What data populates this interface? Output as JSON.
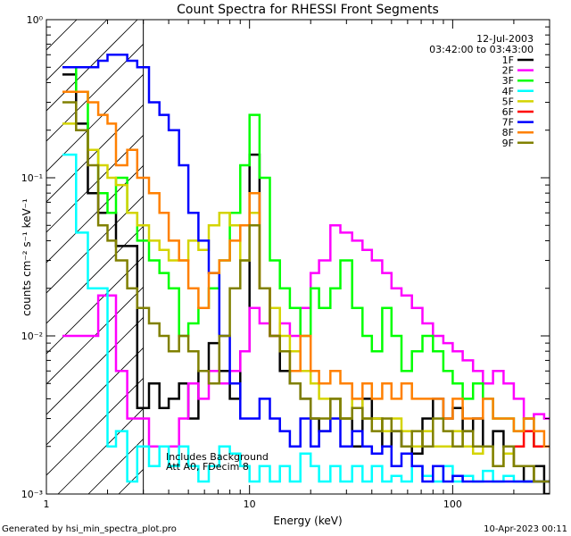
{
  "chart_data": {
    "type": "line",
    "title": "Count Spectra for RHESSI Front Segments",
    "xlabel": "Energy (keV)",
    "ylabel": "counts cm⁻² s⁻¹ keV⁻¹",
    "xscale": "log",
    "yscale": "log",
    "xlim": [
      1,
      300
    ],
    "ylim": [
      0.001,
      1
    ],
    "x_ticks": [
      {
        "value": 1,
        "label": "1"
      },
      {
        "value": 10,
        "label": "10"
      },
      {
        "value": 100,
        "label": "100"
      }
    ],
    "y_ticks": [
      {
        "value": 0.001,
        "label": "10⁻³"
      },
      {
        "value": 0.01,
        "label": "10⁻²"
      },
      {
        "value": 0.1,
        "label": "10⁻¹"
      },
      {
        "value": 1,
        "label": "10⁰"
      }
    ],
    "date": "12-Jul-2003",
    "time_range": "03:42:00 to 03:43:00",
    "annotations": [
      "Includes Background",
      "Att A0, FDecim 8"
    ],
    "hatched_region_x": [
      1,
      3
    ],
    "legend_placement": "top-right",
    "grid": false,
    "series": [
      {
        "name": "1F",
        "color": "#000000",
        "x": [
          1.2,
          1.4,
          1.6,
          1.8,
          2.0,
          2.2,
          2.5,
          2.8,
          3.2,
          3.6,
          4.0,
          4.5,
          5.0,
          5.6,
          6.3,
          7.1,
          8.0,
          9.0,
          10.0,
          11.2,
          12.6,
          14.1,
          15.8,
          17.8,
          20,
          22,
          25,
          28,
          32,
          36,
          40,
          45,
          50,
          56,
          63,
          71,
          80,
          90,
          100,
          112,
          126,
          141,
          158,
          178,
          200,
          224,
          251,
          282
        ],
        "y": [
          0.45,
          0.22,
          0.08,
          0.06,
          0.06,
          0.037,
          0.037,
          0.0035,
          0.005,
          0.0035,
          0.004,
          0.005,
          0.003,
          0.006,
          0.009,
          0.006,
          0.004,
          0.008,
          0.14,
          0.02,
          0.01,
          0.006,
          0.005,
          0.004,
          0.003,
          0.0025,
          0.004,
          0.003,
          0.002,
          0.004,
          0.003,
          0.002,
          0.0025,
          0.002,
          0.0018,
          0.003,
          0.004,
          0.003,
          0.0035,
          0.0025,
          0.003,
          0.002,
          0.0025,
          0.002,
          0.0015,
          0.0012,
          0.0015,
          0.001
        ]
      },
      {
        "name": "2F",
        "color": "#ff00ff",
        "x": [
          1.2,
          1.4,
          1.6,
          1.8,
          2.0,
          2.2,
          2.5,
          2.8,
          3.2,
          3.6,
          4.0,
          4.5,
          5.0,
          5.6,
          6.3,
          7.1,
          8.0,
          9.0,
          10.0,
          11.2,
          12.6,
          14.1,
          15.8,
          17.8,
          20,
          22,
          25,
          28,
          32,
          36,
          40,
          45,
          50,
          56,
          63,
          71,
          80,
          90,
          100,
          112,
          126,
          141,
          158,
          178,
          200,
          224,
          251,
          282
        ],
        "y": [
          0.01,
          0.01,
          0.01,
          0.018,
          0.018,
          0.006,
          0.003,
          0.003,
          0.002,
          0.002,
          0.002,
          0.003,
          0.005,
          0.004,
          0.006,
          0.005,
          0.006,
          0.008,
          0.015,
          0.012,
          0.01,
          0.012,
          0.01,
          0.015,
          0.025,
          0.03,
          0.05,
          0.045,
          0.04,
          0.035,
          0.03,
          0.025,
          0.02,
          0.018,
          0.015,
          0.012,
          0.01,
          0.009,
          0.008,
          0.007,
          0.006,
          0.005,
          0.006,
          0.005,
          0.004,
          0.003,
          0.0032,
          0.003
        ]
      },
      {
        "name": "3F",
        "color": "#00ff00",
        "x": [
          1.2,
          1.4,
          1.6,
          1.8,
          2.0,
          2.2,
          2.5,
          2.8,
          3.2,
          3.6,
          4.0,
          4.5,
          5.0,
          5.6,
          6.3,
          7.1,
          8.0,
          9.0,
          10.0,
          11.2,
          12.6,
          14.1,
          15.8,
          17.8,
          20,
          22,
          25,
          28,
          32,
          36,
          40,
          45,
          50,
          56,
          63,
          71,
          80,
          90,
          100,
          112,
          126,
          141,
          158,
          178,
          200,
          224,
          251,
          282
        ],
        "y": [
          0.5,
          0.35,
          0.15,
          0.08,
          0.06,
          0.1,
          0.06,
          0.04,
          0.03,
          0.025,
          0.02,
          0.01,
          0.012,
          0.015,
          0.02,
          0.03,
          0.06,
          0.12,
          0.25,
          0.1,
          0.03,
          0.02,
          0.015,
          0.01,
          0.02,
          0.015,
          0.02,
          0.03,
          0.015,
          0.01,
          0.008,
          0.015,
          0.01,
          0.006,
          0.008,
          0.01,
          0.008,
          0.006,
          0.005,
          0.004,
          0.005,
          0.004,
          0.003,
          0.003,
          0.0025,
          0.003,
          0.002,
          0.002
        ]
      },
      {
        "name": "4F",
        "color": "#00ffff",
        "x": [
          1.2,
          1.4,
          1.6,
          1.8,
          2.0,
          2.2,
          2.5,
          2.8,
          3.2,
          3.6,
          4.0,
          4.5,
          5.0,
          5.6,
          6.3,
          7.1,
          8.0,
          9.0,
          10.0,
          11.2,
          12.6,
          14.1,
          15.8,
          17.8,
          20,
          22,
          25,
          28,
          32,
          36,
          40,
          45,
          50,
          56,
          63,
          71,
          80,
          90,
          100,
          112,
          126,
          141,
          158,
          178,
          200,
          224,
          251,
          282
        ],
        "y": [
          0.14,
          0.045,
          0.02,
          0.02,
          0.002,
          0.0025,
          0.0012,
          0.002,
          0.0015,
          0.002,
          0.0015,
          0.002,
          0.0015,
          0.0012,
          0.0015,
          0.002,
          0.0018,
          0.0015,
          0.0012,
          0.0015,
          0.0012,
          0.0015,
          0.0012,
          0.0018,
          0.0015,
          0.0012,
          0.0015,
          0.0012,
          0.0015,
          0.0012,
          0.0015,
          0.0012,
          0.0013,
          0.0012,
          0.0015,
          0.0013,
          0.0012,
          0.0015,
          0.0012,
          0.0013,
          0.0012,
          0.0014,
          0.0012,
          0.0013,
          0.0012,
          0.0012,
          0.0012,
          0.0012
        ]
      },
      {
        "name": "5F",
        "color": "#d4d400",
        "x": [
          1.2,
          1.4,
          1.6,
          1.8,
          2.0,
          2.2,
          2.5,
          2.8,
          3.2,
          3.6,
          4.0,
          4.5,
          5.0,
          5.6,
          6.3,
          7.1,
          8.0,
          9.0,
          10.0,
          11.2,
          12.6,
          14.1,
          15.8,
          17.8,
          20,
          22,
          25,
          28,
          32,
          36,
          40,
          45,
          50,
          56,
          63,
          71,
          80,
          90,
          100,
          112,
          126,
          141,
          158,
          178,
          200,
          224,
          251,
          282
        ],
        "y": [
          0.22,
          0.2,
          0.15,
          0.12,
          0.1,
          0.09,
          0.06,
          0.05,
          0.04,
          0.035,
          0.03,
          0.03,
          0.04,
          0.035,
          0.05,
          0.06,
          0.05,
          0.03,
          0.06,
          0.02,
          0.015,
          0.01,
          0.008,
          0.006,
          0.005,
          0.004,
          0.004,
          0.003,
          0.004,
          0.003,
          0.003,
          0.0025,
          0.003,
          0.0025,
          0.002,
          0.0025,
          0.002,
          0.002,
          0.0025,
          0.002,
          0.0018,
          0.002,
          0.0015,
          0.0018,
          0.0015,
          0.0015,
          0.0012,
          0.0012
        ]
      },
      {
        "name": "6F",
        "color": "#ff0000",
        "x": [
          200,
          224,
          251
        ],
        "y": [
          0.002,
          0.0025,
          0.002
        ]
      },
      {
        "name": "7F",
        "color": "#0000ff",
        "x": [
          1.2,
          1.4,
          1.6,
          1.8,
          2.0,
          2.2,
          2.5,
          2.8,
          3.2,
          3.6,
          4.0,
          4.5,
          5.0,
          5.6,
          6.3,
          7.1,
          8.0,
          9.0,
          10.0,
          11.2,
          12.6,
          14.1,
          15.8,
          17.8,
          20,
          22,
          25,
          28,
          32,
          36,
          40,
          45,
          50,
          56,
          63,
          71,
          80,
          90,
          100,
          112,
          126,
          141,
          158,
          178,
          200,
          224,
          251,
          282
        ],
        "y": [
          0.5,
          0.5,
          0.5,
          0.55,
          0.6,
          0.6,
          0.55,
          0.5,
          0.3,
          0.25,
          0.2,
          0.12,
          0.06,
          0.04,
          0.025,
          0.01,
          0.005,
          0.003,
          0.003,
          0.004,
          0.003,
          0.0025,
          0.002,
          0.003,
          0.002,
          0.0025,
          0.003,
          0.002,
          0.0025,
          0.002,
          0.0018,
          0.002,
          0.0015,
          0.0018,
          0.0015,
          0.0012,
          0.0015,
          0.0012,
          0.0013,
          0.0012,
          0.0012,
          0.0012,
          0.0012,
          0.0012,
          0.0012,
          0.0012,
          0.0012,
          0.0012
        ]
      },
      {
        "name": "8F",
        "color": "#ff8000",
        "x": [
          1.2,
          1.4,
          1.6,
          1.8,
          2.0,
          2.2,
          2.5,
          2.8,
          3.2,
          3.6,
          4.0,
          4.5,
          5.0,
          5.6,
          6.3,
          7.1,
          8.0,
          9.0,
          10.0,
          11.2,
          12.6,
          14.1,
          15.8,
          17.8,
          20,
          22,
          25,
          28,
          32,
          36,
          40,
          45,
          50,
          56,
          63,
          71,
          80,
          90,
          100,
          112,
          126,
          141,
          158,
          178,
          200,
          224,
          251,
          282
        ],
        "y": [
          0.35,
          0.35,
          0.3,
          0.25,
          0.22,
          0.12,
          0.15,
          0.1,
          0.08,
          0.06,
          0.04,
          0.03,
          0.02,
          0.015,
          0.025,
          0.03,
          0.04,
          0.05,
          0.08,
          0.02,
          0.01,
          0.008,
          0.006,
          0.01,
          0.006,
          0.005,
          0.006,
          0.005,
          0.004,
          0.005,
          0.004,
          0.005,
          0.004,
          0.005,
          0.004,
          0.004,
          0.004,
          0.003,
          0.004,
          0.003,
          0.003,
          0.004,
          0.003,
          0.003,
          0.0025,
          0.003,
          0.0025,
          0.002
        ]
      },
      {
        "name": "9F",
        "color": "#808000",
        "x": [
          1.2,
          1.4,
          1.6,
          1.8,
          2.0,
          2.2,
          2.5,
          2.8,
          3.2,
          3.6,
          4.0,
          4.5,
          5.0,
          5.6,
          6.3,
          7.1,
          8.0,
          9.0,
          10.0,
          11.2,
          12.6,
          14.1,
          15.8,
          17.8,
          20,
          22,
          25,
          28,
          32,
          36,
          40,
          45,
          50,
          56,
          63,
          71,
          80,
          90,
          100,
          112,
          126,
          141,
          158,
          178,
          200,
          224,
          251,
          282
        ],
        "y": [
          0.3,
          0.2,
          0.12,
          0.05,
          0.04,
          0.03,
          0.02,
          0.015,
          0.012,
          0.01,
          0.008,
          0.01,
          0.008,
          0.006,
          0.005,
          0.01,
          0.02,
          0.03,
          0.05,
          0.02,
          0.01,
          0.008,
          0.005,
          0.004,
          0.003,
          0.003,
          0.004,
          0.003,
          0.0035,
          0.003,
          0.0025,
          0.003,
          0.0025,
          0.002,
          0.0025,
          0.002,
          0.003,
          0.0025,
          0.002,
          0.0025,
          0.002,
          0.002,
          0.0015,
          0.002,
          0.0015,
          0.0015,
          0.0012,
          0.0012
        ]
      }
    ]
  },
  "footer": {
    "generated_by": "Generated by hsi_min_spectra_plot.pro",
    "timestamp": "10-Apr-2023 00:11"
  }
}
